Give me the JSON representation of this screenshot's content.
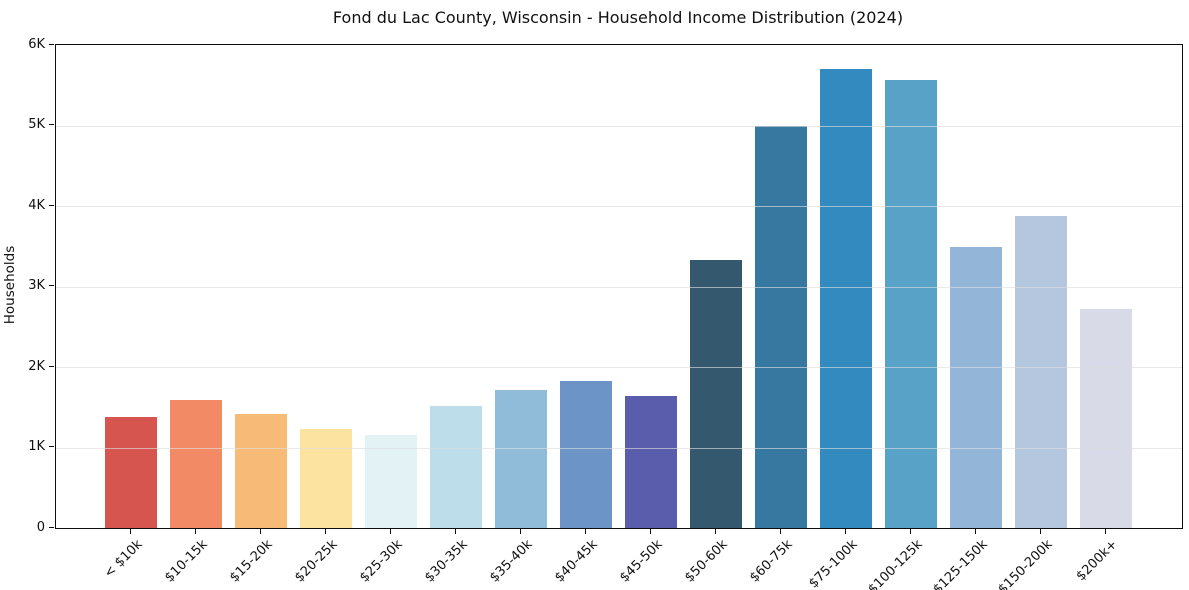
{
  "chart_data": {
    "type": "bar",
    "title": "Fond du Lac County, Wisconsin - Household Income Distribution (2024)",
    "xlabel": "",
    "ylabel": "Households",
    "ylim": [
      0,
      6000
    ],
    "grid": true,
    "legend": "none",
    "yticks": [
      {
        "label": "0",
        "value": 0
      },
      {
        "label": "1K",
        "value": 1000
      },
      {
        "label": "2K",
        "value": 2000
      },
      {
        "label": "3K",
        "value": 3000
      },
      {
        "label": "4K",
        "value": 4000
      },
      {
        "label": "5K",
        "value": 5000
      },
      {
        "label": "6K",
        "value": 6000
      }
    ],
    "categories": [
      "< $10k",
      "$10-15k",
      "$15-20k",
      "$20-25k",
      "$25-30k",
      "$30-35k",
      "$35-40k",
      "$40-45k",
      "$45-50k",
      "$50-60k",
      "$60-75k",
      "$75-100k",
      "$100-125k",
      "$125-150k",
      "$150-200k",
      "$200k+"
    ],
    "values": [
      1380,
      1590,
      1420,
      1230,
      1160,
      1520,
      1710,
      1830,
      1640,
      3330,
      5000,
      5700,
      5570,
      3490,
      3880,
      2720
    ],
    "bar_colors": [
      "#d6564f",
      "#f28a66",
      "#f8bb77",
      "#fce4a0",
      "#e3f2f5",
      "#bcdde9",
      "#90bcda",
      "#6c94c6",
      "#5a5dab",
      "#34586d",
      "#36789f",
      "#338abf",
      "#58a2c8",
      "#92b5d8",
      "#b4c7de",
      "#d8dae7"
    ],
    "colors": {
      "background": "#ffffff",
      "spine": "#0d0d0d",
      "gridline": "#dddddd",
      "text": "#111111"
    }
  }
}
